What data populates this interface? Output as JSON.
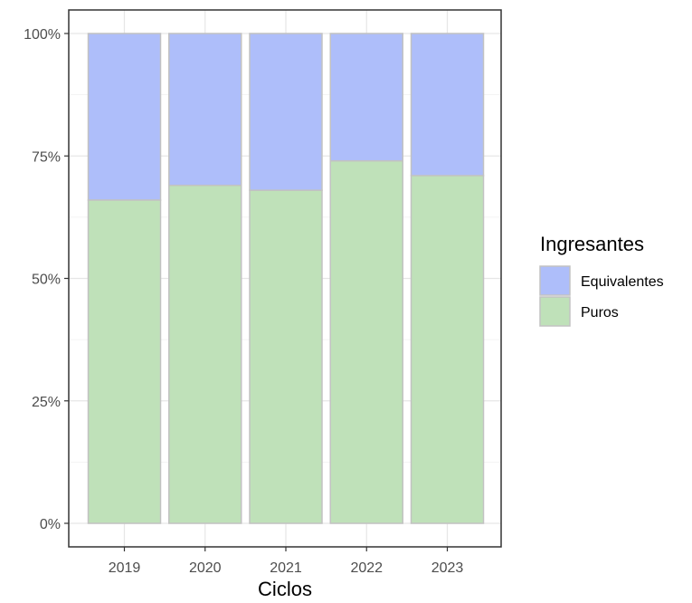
{
  "chart_data": {
    "type": "bar",
    "stacked": true,
    "percent": true,
    "categories": [
      "2019",
      "2020",
      "2021",
      "2022",
      "2023"
    ],
    "series": [
      {
        "name": "Puros",
        "values": [
          66,
          69,
          68,
          74,
          71
        ],
        "color": "#bfe1b9"
      },
      {
        "name": "Equivalentes",
        "values": [
          34,
          31,
          32,
          26,
          29
        ],
        "color": "#aebefa"
      }
    ],
    "xlabel": "Ciclos",
    "ylabel": "",
    "ylim": [
      0,
      100
    ],
    "yticks": [
      0,
      25,
      50,
      75,
      100
    ],
    "ytick_labels": [
      "0%",
      "25%",
      "50%",
      "75%",
      "100%"
    ],
    "grid": true,
    "legend": {
      "title": "Ingresantes",
      "position": "right",
      "entries": [
        "Equivalentes",
        "Puros"
      ]
    }
  }
}
